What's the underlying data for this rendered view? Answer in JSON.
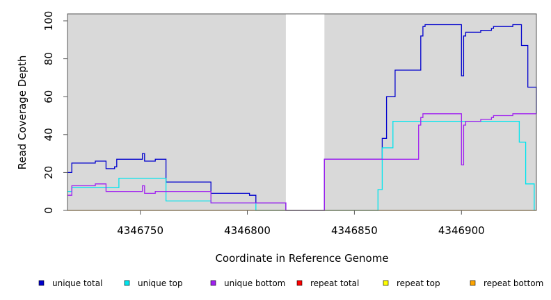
{
  "chart_data": {
    "type": "line",
    "title": "",
    "xlabel": "Coordinate in Reference Genome",
    "ylabel": "Read Coverage Depth",
    "xlim": [
      4346716,
      4346935
    ],
    "ylim": [
      0,
      100
    ],
    "x_ticks": [
      4346750,
      4346800,
      4346850,
      4346900
    ],
    "y_ticks": [
      0,
      20,
      40,
      60,
      80,
      100
    ],
    "shaded_regions": [
      [
        4346716,
        4346818
      ],
      [
        4346836,
        4346935
      ]
    ],
    "background_color": "#d9d9d9",
    "grid": false,
    "legend_position": "bottom",
    "series": [
      {
        "name": "unique total",
        "color": "#0000cd",
        "points": [
          [
            4346716,
            20
          ],
          [
            4346718,
            20
          ],
          [
            4346718,
            25
          ],
          [
            4346729,
            25
          ],
          [
            4346729,
            26
          ],
          [
            4346734,
            26
          ],
          [
            4346734,
            22
          ],
          [
            4346738,
            22
          ],
          [
            4346738,
            23
          ],
          [
            4346739,
            23
          ],
          [
            4346739,
            27
          ],
          [
            4346751,
            27
          ],
          [
            4346751,
            30
          ],
          [
            4346752,
            30
          ],
          [
            4346752,
            26
          ],
          [
            4346757,
            26
          ],
          [
            4346757,
            27
          ],
          [
            4346762,
            27
          ],
          [
            4346762,
            15
          ],
          [
            4346783,
            15
          ],
          [
            4346783,
            9
          ],
          [
            4346801,
            9
          ],
          [
            4346801,
            8
          ],
          [
            4346804,
            8
          ],
          [
            4346804,
            4
          ],
          [
            4346818,
            4
          ],
          [
            4346818,
            0
          ],
          [
            4346836,
            0
          ],
          [
            4346836,
            27
          ],
          [
            4346863,
            27
          ],
          [
            4346863,
            38
          ],
          [
            4346865,
            38
          ],
          [
            4346865,
            60
          ],
          [
            4346869,
            60
          ],
          [
            4346869,
            74
          ],
          [
            4346881,
            74
          ],
          [
            4346881,
            92
          ],
          [
            4346882,
            92
          ],
          [
            4346882,
            97
          ],
          [
            4346883,
            97
          ],
          [
            4346883,
            98
          ],
          [
            4346900,
            98
          ],
          [
            4346900,
            71
          ],
          [
            4346901,
            71
          ],
          [
            4346901,
            92
          ],
          [
            4346902,
            92
          ],
          [
            4346902,
            94
          ],
          [
            4346909,
            94
          ],
          [
            4346909,
            95
          ],
          [
            4346914,
            95
          ],
          [
            4346914,
            96
          ],
          [
            4346915,
            96
          ],
          [
            4346915,
            97
          ],
          [
            4346924,
            97
          ],
          [
            4346924,
            98
          ],
          [
            4346928,
            98
          ],
          [
            4346928,
            87
          ],
          [
            4346931,
            87
          ],
          [
            4346931,
            65
          ],
          [
            4346935,
            65
          ],
          [
            4346935,
            51
          ]
        ]
      },
      {
        "name": "unique top",
        "color": "#00e5ee",
        "points": [
          [
            4346716,
            10
          ],
          [
            4346718,
            10
          ],
          [
            4346718,
            12
          ],
          [
            4346740,
            12
          ],
          [
            4346740,
            17
          ],
          [
            4346762,
            17
          ],
          [
            4346762,
            5
          ],
          [
            4346783,
            5
          ],
          [
            4346783,
            4
          ],
          [
            4346804,
            4
          ],
          [
            4346804,
            0
          ],
          [
            4346861,
            0
          ],
          [
            4346861,
            11
          ],
          [
            4346863,
            11
          ],
          [
            4346863,
            33
          ],
          [
            4346868,
            33
          ],
          [
            4346868,
            47
          ],
          [
            4346927,
            47
          ],
          [
            4346927,
            36
          ],
          [
            4346930,
            36
          ],
          [
            4346930,
            14
          ],
          [
            4346934,
            14
          ],
          [
            4346934,
            0
          ]
        ]
      },
      {
        "name": "unique bottom",
        "color": "#a020f0",
        "points": [
          [
            4346716,
            8
          ],
          [
            4346718,
            8
          ],
          [
            4346718,
            13
          ],
          [
            4346729,
            13
          ],
          [
            4346729,
            14
          ],
          [
            4346734,
            14
          ],
          [
            4346734,
            10
          ],
          [
            4346751,
            10
          ],
          [
            4346751,
            13
          ],
          [
            4346752,
            13
          ],
          [
            4346752,
            9
          ],
          [
            4346757,
            9
          ],
          [
            4346757,
            10
          ],
          [
            4346783,
            10
          ],
          [
            4346783,
            4
          ],
          [
            4346818,
            4
          ],
          [
            4346818,
            0
          ],
          [
            4346836,
            0
          ],
          [
            4346836,
            27
          ],
          [
            4346880,
            27
          ],
          [
            4346880,
            45
          ],
          [
            4346881,
            45
          ],
          [
            4346881,
            49
          ],
          [
            4346882,
            49
          ],
          [
            4346882,
            51
          ],
          [
            4346900,
            51
          ],
          [
            4346900,
            24
          ],
          [
            4346901,
            24
          ],
          [
            4346901,
            45
          ],
          [
            4346902,
            45
          ],
          [
            4346902,
            47
          ],
          [
            4346909,
            47
          ],
          [
            4346909,
            48
          ],
          [
            4346914,
            48
          ],
          [
            4346914,
            49
          ],
          [
            4346915,
            49
          ],
          [
            4346915,
            50
          ],
          [
            4346924,
            50
          ],
          [
            4346924,
            51
          ],
          [
            4346935,
            51
          ]
        ]
      },
      {
        "name": "repeat total",
        "color": "#ff0000",
        "points": []
      },
      {
        "name": "repeat top",
        "color": "#ffff00",
        "points": []
      },
      {
        "name": "repeat bottom",
        "color": "#ffa500",
        "points": [
          [
            4346716,
            0
          ],
          [
            4346935,
            0
          ]
        ]
      }
    ]
  }
}
